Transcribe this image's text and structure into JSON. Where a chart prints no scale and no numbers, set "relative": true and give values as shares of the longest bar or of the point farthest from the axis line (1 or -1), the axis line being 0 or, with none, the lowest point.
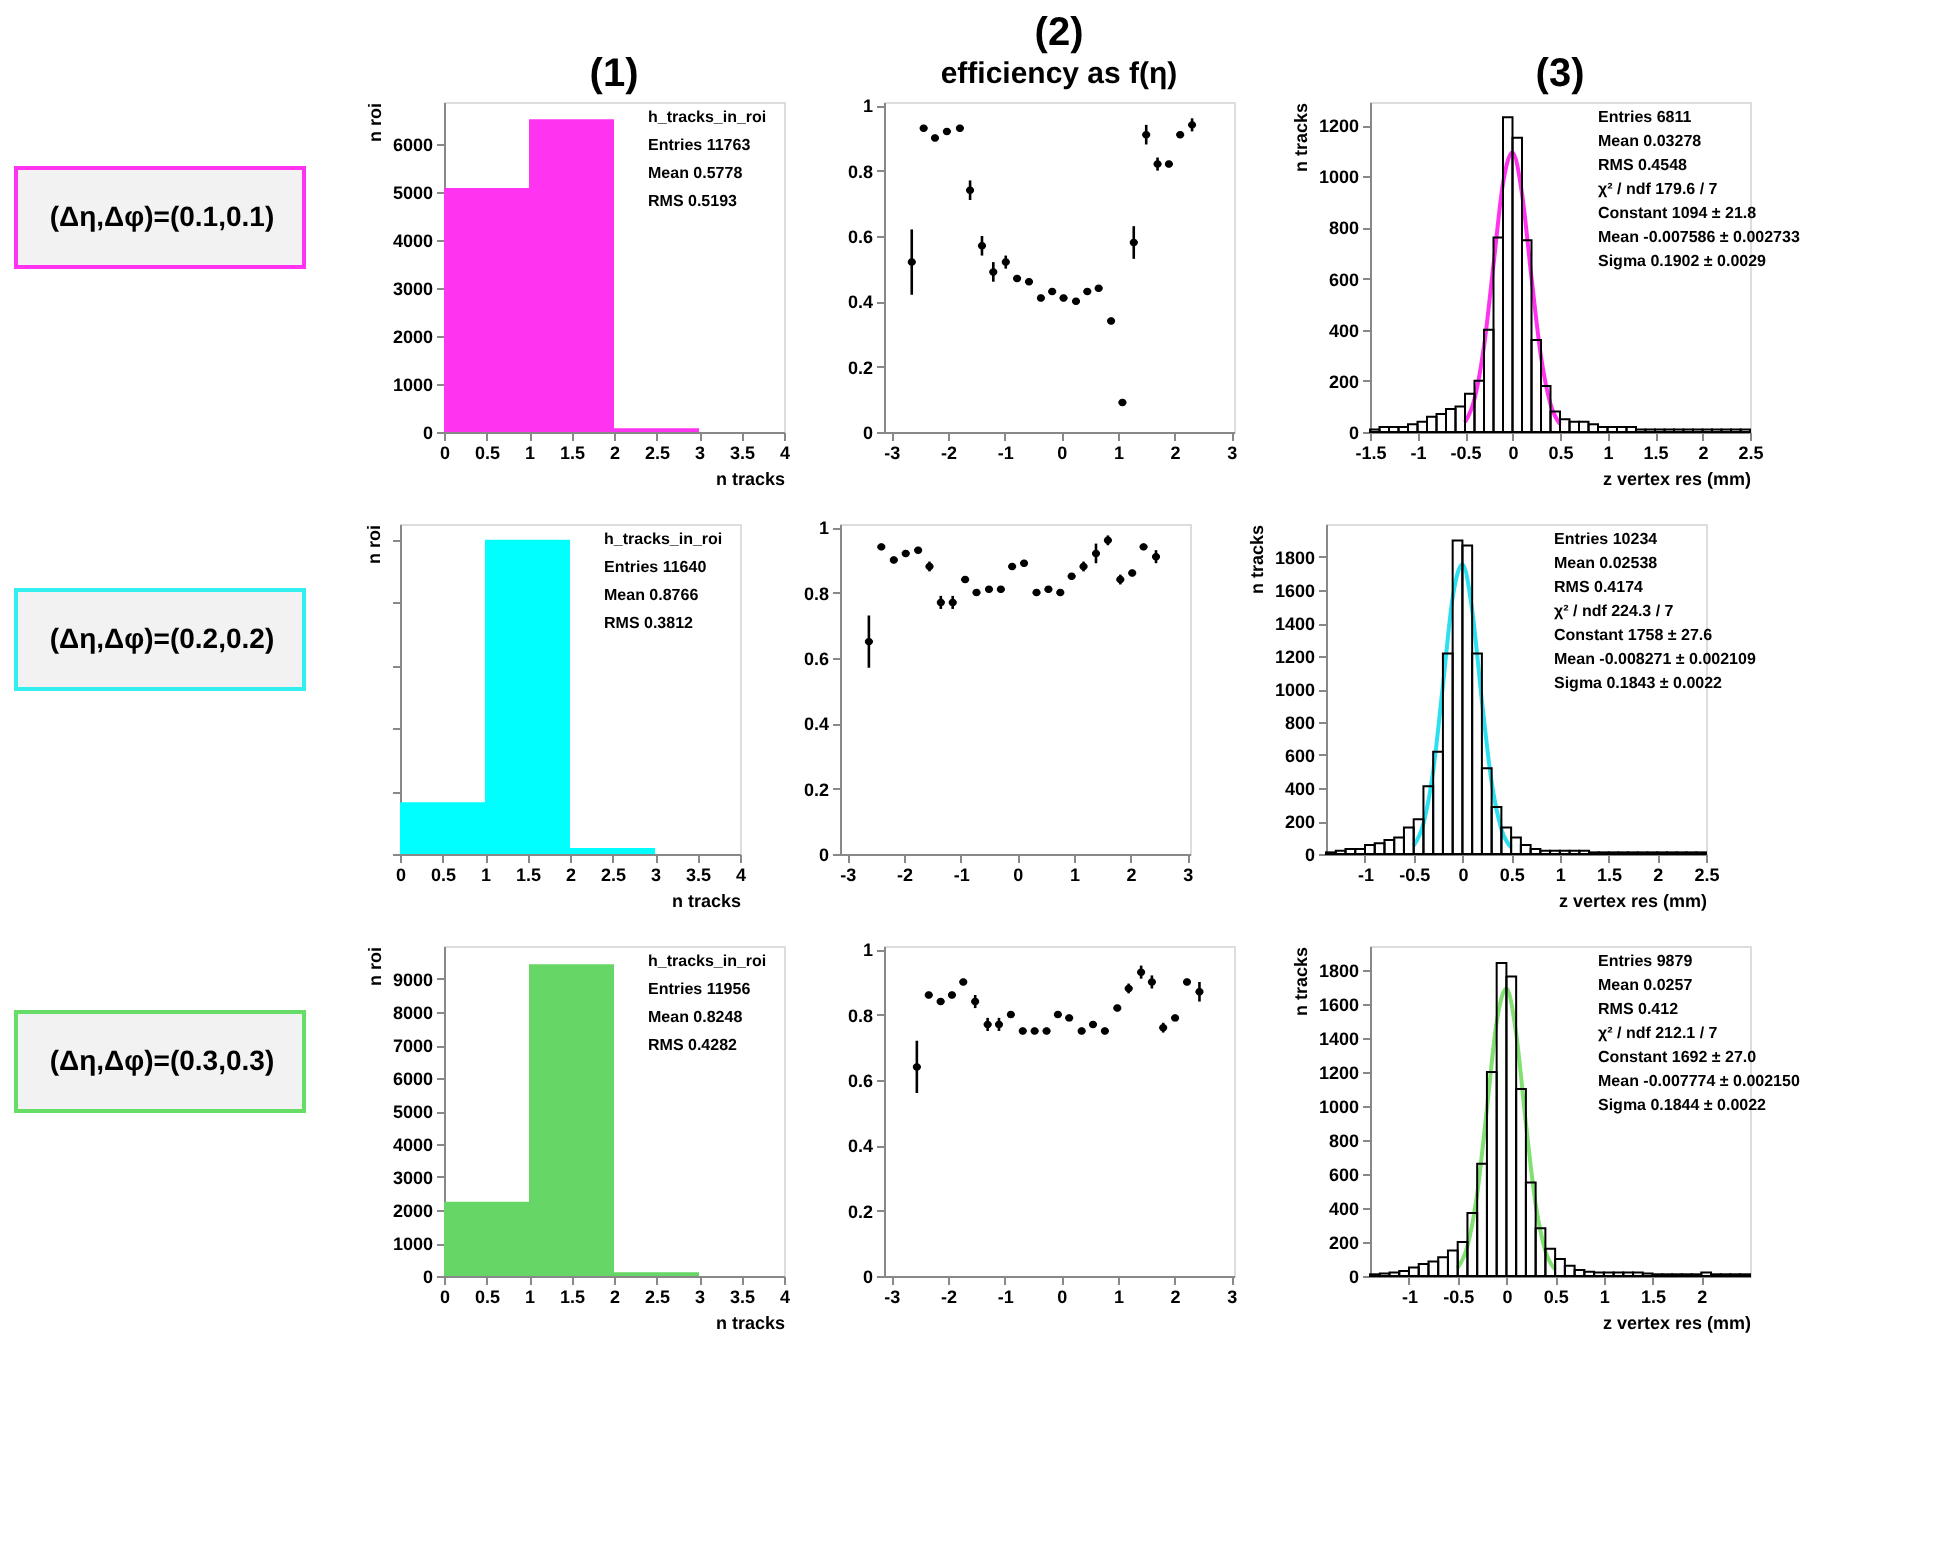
{
  "chart_data": [
    {
      "type": "other",
      "annotations": [
        "(Δη,Δφ)=(0.1,0.1)"
      ],
      "color": "#ff33f0"
    },
    {
      "type": "histogram",
      "title": "(1)",
      "ylabel": "n roi",
      "xlabel": "n tracks",
      "color": "#ff33f0",
      "bins": [
        0,
        1,
        2,
        3,
        4
      ],
      "values": [
        5080,
        6510,
        80,
        0
      ],
      "xlim": [
        0,
        4
      ],
      "xticks": [
        0,
        0.5,
        1,
        1.5,
        2,
        2.5,
        3,
        3.5,
        4
      ],
      "ylim": [
        0,
        6870
      ],
      "yticks": [
        0,
        1000,
        2000,
        3000,
        4000,
        5000,
        6000
      ],
      "annotations": [
        "h_tracks_in_roi",
        "Entries 11763",
        "Mean 0.5778",
        "RMS 0.5193"
      ]
    },
    {
      "type": "scatter",
      "title": "(2)",
      "subtitle": "efficiency as f(η)",
      "x": [
        -2.64,
        -2.43,
        -2.23,
        -2.02,
        -1.79,
        -1.61,
        -1.4,
        -1.2,
        -0.98,
        -0.78,
        -0.57,
        -0.36,
        -0.16,
        0.04,
        0.26,
        0.46,
        0.66,
        0.88,
        1.08,
        1.28,
        1.5,
        1.7,
        1.9,
        2.1,
        2.31
      ],
      "values": [
        0.52,
        0.93,
        0.9,
        0.92,
        0.93,
        0.74,
        0.57,
        0.49,
        0.52,
        0.47,
        0.46,
        0.41,
        0.43,
        0.41,
        0.4,
        0.43,
        0.44,
        0.34,
        0.09,
        0.58,
        0.91,
        0.82,
        0.82,
        0.91,
        0.94
      ],
      "errors": [
        0.1,
        0.01,
        0.01,
        0.01,
        0.01,
        0.03,
        0.03,
        0.03,
        0.02,
        0.01,
        0.01,
        0.01,
        0.01,
        0.01,
        0.01,
        0.01,
        0.01,
        0.01,
        0.01,
        0.05,
        0.03,
        0.02,
        0.01,
        0.01,
        0.02
      ],
      "xerrors": [
        0.07,
        0.07,
        0.07,
        0.07,
        0.07,
        0.07,
        0.07,
        0.07,
        0.07,
        0.07,
        0.07,
        0.07,
        0.07,
        0.07,
        0.07,
        0.07,
        0.07,
        0.07,
        0.07,
        0.07,
        0.07,
        0.07,
        0.07,
        0.07,
        0.07
      ],
      "xlim": [
        -3.13,
        3.05
      ],
      "xticks": [
        -3,
        -2,
        -1,
        0,
        1,
        2,
        3
      ],
      "ylim": [
        0,
        1.01
      ],
      "yticks": [
        0,
        0.2,
        0.4,
        0.6,
        0.8,
        1
      ]
    },
    {
      "type": "histogram",
      "title": "(3)",
      "ylabel": "n tracks",
      "xlabel": "z vertex res (mm)",
      "xlim": [
        -1.5,
        2.5
      ],
      "xticks": [
        -1.5,
        -1,
        -0.5,
        0,
        0.5,
        1,
        1.5,
        2,
        2.5
      ],
      "ylim": [
        0,
        1290
      ],
      "yticks": [
        0,
        200,
        400,
        600,
        800,
        1000,
        1200
      ],
      "series": [
        {
          "type": "histogram",
          "color": "#000000",
          "bins": [
            -1.5,
            -1.4,
            -1.3,
            -1.2,
            -1.1,
            -1.0,
            -0.9,
            -0.8,
            -0.7,
            -0.6,
            -0.5,
            -0.4,
            -0.3,
            -0.2,
            -0.1,
            0.0,
            0.1,
            0.2,
            0.3,
            0.4,
            0.5,
            0.6,
            0.7,
            0.8,
            0.9,
            1.0,
            1.1,
            1.2,
            1.3,
            1.4,
            1.5,
            1.6,
            1.7,
            1.8,
            1.9,
            2.0,
            2.1,
            2.2,
            2.3,
            2.4,
            2.5
          ],
          "values": [
            10,
            20,
            20,
            20,
            30,
            40,
            60,
            70,
            90,
            100,
            150,
            200,
            400,
            760,
            1230,
            1150,
            750,
            360,
            180,
            80,
            50,
            40,
            40,
            30,
            20,
            20,
            20,
            20,
            10,
            10,
            10,
            10,
            10,
            10,
            10,
            10,
            10,
            10,
            10,
            10
          ]
        },
        {
          "type": "line",
          "color": "#ff33ee",
          "x": [
            -0.5,
            -0.4,
            -0.3,
            -0.2,
            -0.1,
            0.0,
            0.1,
            0.2,
            0.3,
            0.4,
            0.5
          ],
          "values": [
            38,
            129,
            335,
            654,
            972,
            1093,
            932,
            603,
            295,
            109,
            31
          ]
        }
      ],
      "annotations": [
        "Entries 6811",
        "Mean 0.03278",
        "RMS 0.4548",
        "χ² / ndf 179.6 / 7",
        "Constant 1094 ± 21.8",
        "Mean -0.007586 ± 0.002733",
        "Sigma 0.1902 ± 0.0029"
      ]
    },
    {
      "type": "other",
      "annotations": [
        "(Δη,Δφ)=(0.2,0.2)"
      ],
      "color": "#33eeee"
    },
    {
      "type": "bar",
      "ylabel": "n roi",
      "xlabel": "n tracks",
      "color": "#00ffff",
      "relative": true,
      "x": [
        0.5,
        1.5,
        2.5
      ],
      "values": [
        0.165,
        1,
        0.019
      ],
      "xlim": [
        0,
        4
      ],
      "xticks": [
        0,
        0.5,
        1,
        1.5,
        2,
        2.5,
        3,
        3.5,
        4
      ],
      "annotations": [
        "h_tracks_in_roi",
        "Entries 11640",
        "Mean 0.8766",
        "RMS 0.3812"
      ]
    },
    {
      "type": "scatter",
      "x": [
        -2.62,
        -2.4,
        -2.18,
        -1.97,
        -1.75,
        -1.55,
        -1.35,
        -1.14,
        -0.92,
        -0.72,
        -0.5,
        -0.29,
        -0.09,
        0.12,
        0.34,
        0.55,
        0.76,
        0.96,
        1.17,
        1.39,
        1.6,
        1.82,
        2.03,
        2.23,
        2.45
      ],
      "values": [
        0.65,
        0.94,
        0.9,
        0.92,
        0.93,
        0.88,
        0.77,
        0.77,
        0.84,
        0.8,
        0.81,
        0.81,
        0.88,
        0.89,
        0.8,
        0.81,
        0.8,
        0.85,
        0.88,
        0.92,
        0.96,
        0.84,
        0.86,
        0.94,
        0.91
      ],
      "errors": [
        0.08,
        0.01,
        0.01,
        0.01,
        0.01,
        0.015,
        0.02,
        0.02,
        0.01,
        0.01,
        0.01,
        0.01,
        0.01,
        0.01,
        0.01,
        0.01,
        0.01,
        0.01,
        0.015,
        0.03,
        0.015,
        0.015,
        0.01,
        0.01,
        0.02
      ],
      "xerrors": [
        0.07,
        0.07,
        0.07,
        0.07,
        0.07,
        0.07,
        0.07,
        0.07,
        0.07,
        0.07,
        0.07,
        0.07,
        0.07,
        0.07,
        0.07,
        0.07,
        0.07,
        0.07,
        0.07,
        0.07,
        0.07,
        0.07,
        0.07,
        0.07,
        0.07
      ],
      "xlim": [
        -3.13,
        3.05
      ],
      "xticks": [
        -3,
        -2,
        -1,
        0,
        1,
        2,
        3
      ],
      "ylim": [
        0,
        1.01
      ],
      "yticks": [
        0,
        0.2,
        0.4,
        0.6,
        0.8,
        1
      ]
    },
    {
      "type": "histogram",
      "ylabel": "n tracks",
      "xlabel": "z vertex res (mm)",
      "xlim": [
        -1.4,
        2.5
      ],
      "xticks": [
        -1,
        -0.5,
        0,
        0.5,
        1,
        1.5,
        2,
        2.5
      ],
      "ylim": [
        0,
        2000
      ],
      "yticks": [
        0,
        200,
        400,
        600,
        800,
        1000,
        1200,
        1400,
        1600,
        1800
      ],
      "series": [
        {
          "type": "histogram",
          "color": "#000000",
          "bins": [
            -1.4,
            -1.3,
            -1.2,
            -1.1,
            -1.0,
            -0.9,
            -0.8,
            -0.7,
            -0.6,
            -0.5,
            -0.4,
            -0.3,
            -0.2,
            -0.1,
            0.0,
            0.1,
            0.2,
            0.3,
            0.4,
            0.5,
            0.6,
            0.7,
            0.8,
            0.9,
            1.0,
            1.1,
            1.2,
            1.3,
            1.4,
            1.5,
            1.6,
            1.7,
            1.8,
            1.9,
            2.0,
            2.1,
            2.2,
            2.3,
            2.4,
            2.5
          ],
          "values": [
            10,
            20,
            30,
            30,
            55,
            65,
            85,
            100,
            160,
            210,
            410,
            620,
            1215,
            1900,
            1870,
            1215,
            520,
            285,
            160,
            100,
            55,
            30,
            20,
            20,
            20,
            20,
            20,
            10,
            10,
            10,
            10,
            10,
            10,
            10,
            10,
            10,
            10,
            10,
            10
          ]
        },
        {
          "type": "line",
          "color": "#2ce0f0",
          "x": [
            -0.5,
            -0.4,
            -0.3,
            -0.2,
            -0.1,
            0.0,
            0.1,
            0.2,
            0.3,
            0.4,
            0.5
          ],
          "values": [
            50,
            185,
            502,
            1023,
            1554,
            1756,
            1479,
            927,
            434,
            151,
            39
          ]
        }
      ],
      "annotations": [
        "Entries 10234",
        "Mean 0.02538",
        "RMS 0.4174",
        "χ² / ndf 224.3 / 7",
        "Constant 1758 ± 27.6",
        "Mean -0.008271 ± 0.002109",
        "Sigma 0.1843 ± 0.0022"
      ]
    },
    {
      "type": "other",
      "annotations": [
        "(Δη,Δφ)=(0.3,0.3)"
      ],
      "color": "#66dd66"
    },
    {
      "type": "histogram",
      "ylabel": "n roi",
      "xlabel": "n tracks",
      "color": "#66d666",
      "bins": [
        0,
        1,
        2,
        3,
        4
      ],
      "values": [
        2250,
        9450,
        110,
        0
      ],
      "xlim": [
        0,
        4
      ],
      "xticks": [
        0,
        0.5,
        1,
        1.5,
        2,
        2.5,
        3,
        3.5,
        4
      ],
      "ylim": [
        0,
        10000
      ],
      "yticks": [
        0,
        1000,
        2000,
        3000,
        4000,
        5000,
        6000,
        7000,
        8000,
        9000
      ],
      "annotations": [
        "h_tracks_in_roi",
        "Entries 11956",
        "Mean 0.8248",
        "RMS 0.4282"
      ]
    },
    {
      "type": "scatter",
      "x": [
        -2.55,
        -2.34,
        -2.13,
        -1.93,
        -1.73,
        -1.52,
        -1.3,
        -1.1,
        -0.89,
        -0.68,
        -0.47,
        -0.26,
        -0.06,
        0.14,
        0.36,
        0.56,
        0.77,
        0.99,
        1.19,
        1.41,
        1.6,
        1.8,
        2.01,
        2.22,
        2.44
      ],
      "values": [
        0.64,
        0.86,
        0.84,
        0.86,
        0.9,
        0.84,
        0.77,
        0.77,
        0.8,
        0.75,
        0.75,
        0.75,
        0.8,
        0.79,
        0.75,
        0.77,
        0.75,
        0.82,
        0.88,
        0.93,
        0.9,
        0.76,
        0.79,
        0.9,
        0.87
      ],
      "errors": [
        0.08,
        0.01,
        0.01,
        0.01,
        0.01,
        0.02,
        0.02,
        0.02,
        0.01,
        0.01,
        0.01,
        0.01,
        0.01,
        0.01,
        0.01,
        0.01,
        0.01,
        0.01,
        0.015,
        0.02,
        0.02,
        0.015,
        0.01,
        0.01,
        0.03
      ],
      "xerrors": [
        0.07,
        0.07,
        0.07,
        0.07,
        0.07,
        0.07,
        0.07,
        0.07,
        0.07,
        0.07,
        0.07,
        0.07,
        0.07,
        0.07,
        0.07,
        0.07,
        0.07,
        0.07,
        0.07,
        0.07,
        0.07,
        0.07,
        0.07,
        0.07,
        0.07
      ],
      "xlim": [
        -3.13,
        3.05
      ],
      "xticks": [
        -3,
        -2,
        -1,
        0,
        1,
        2,
        3
      ],
      "ylim": [
        0,
        1.01
      ],
      "yticks": [
        0,
        0.2,
        0.4,
        0.6,
        0.8,
        1
      ]
    },
    {
      "type": "histogram",
      "ylabel": "n tracks",
      "xlabel": "z vertex res (mm)",
      "xlim": [
        -1.4,
        2.5
      ],
      "xticks": [
        -1,
        -0.5,
        0,
        0.5,
        1,
        1.5,
        2
      ],
      "ylim": [
        0,
        1940
      ],
      "yticks": [
        0,
        200,
        400,
        600,
        800,
        1000,
        1200,
        1400,
        1600,
        1800
      ],
      "series": [
        {
          "type": "histogram",
          "color": "#000000",
          "bins": [
            -1.4,
            -1.3,
            -1.2,
            -1.1,
            -1.0,
            -0.9,
            -0.8,
            -0.7,
            -0.6,
            -0.5,
            -0.4,
            -0.3,
            -0.2,
            -0.1,
            0.0,
            0.1,
            0.2,
            0.3,
            0.4,
            0.5,
            0.6,
            0.7,
            0.8,
            0.9,
            1.0,
            1.1,
            1.2,
            1.3,
            1.4,
            1.5,
            1.6,
            1.7,
            1.8,
            1.9,
            2.0,
            2.1,
            2.2,
            2.3,
            2.4,
            2.5
          ],
          "values": [
            10,
            15,
            20,
            30,
            50,
            70,
            85,
            110,
            150,
            200,
            370,
            660,
            1200,
            1840,
            1760,
            1100,
            550,
            280,
            160,
            100,
            60,
            35,
            25,
            20,
            20,
            20,
            20,
            20,
            15,
            10,
            10,
            10,
            10,
            10,
            20,
            10,
            10,
            10,
            10
          ]
        },
        {
          "type": "line",
          "color": "#80e070",
          "x": [
            -0.5,
            -0.4,
            -0.3,
            -0.2,
            -0.1,
            0.0,
            0.1,
            0.2,
            0.3,
            0.4,
            0.5
          ],
          "values": [
            48,
            176,
            483,
            983,
            1493,
            1690,
            1426,
            897,
            421,
            147,
            38
          ]
        }
      ],
      "annotations": [
        "Entries 9879",
        "Mean 0.0257",
        "RMS 0.412",
        "χ² / ndf 212.1 / 7",
        "Constant 1692 ± 27.0",
        "Mean -0.007774 ± 0.002150",
        "Sigma 0.1844 ± 0.0022"
      ]
    }
  ]
}
